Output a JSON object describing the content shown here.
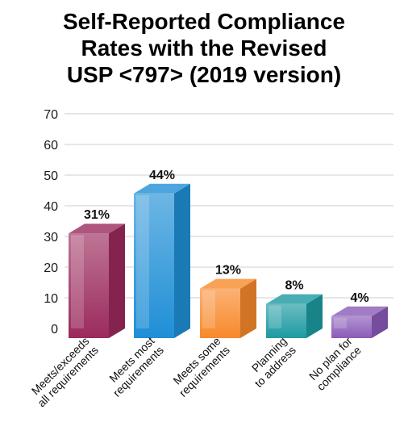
{
  "chart_data": {
    "type": "bar",
    "title_lines": [
      "Self-Reported Compliance",
      "Rates with the Revised",
      "USP <797> (2019 version)"
    ],
    "categories": [
      [
        "Meets/exceeds",
        "all requirements"
      ],
      [
        "Meets most",
        "requirements"
      ],
      [
        "Meets some",
        "requirements"
      ],
      [
        "Planning",
        "to address"
      ],
      [
        "No plan for",
        "compliance"
      ]
    ],
    "values": [
      31,
      44,
      13,
      8,
      4
    ],
    "data_labels": [
      "31%",
      "44%",
      "13%",
      "8%",
      "4%"
    ],
    "colors": [
      "#9b2a5c",
      "#1f8fd6",
      "#f7892b",
      "#1c9aa1",
      "#8a5bb8"
    ],
    "y_ticks": [
      0,
      10,
      20,
      30,
      40,
      50,
      60,
      70
    ],
    "ylim": [
      0,
      70
    ],
    "grid": true,
    "legend": "none"
  }
}
